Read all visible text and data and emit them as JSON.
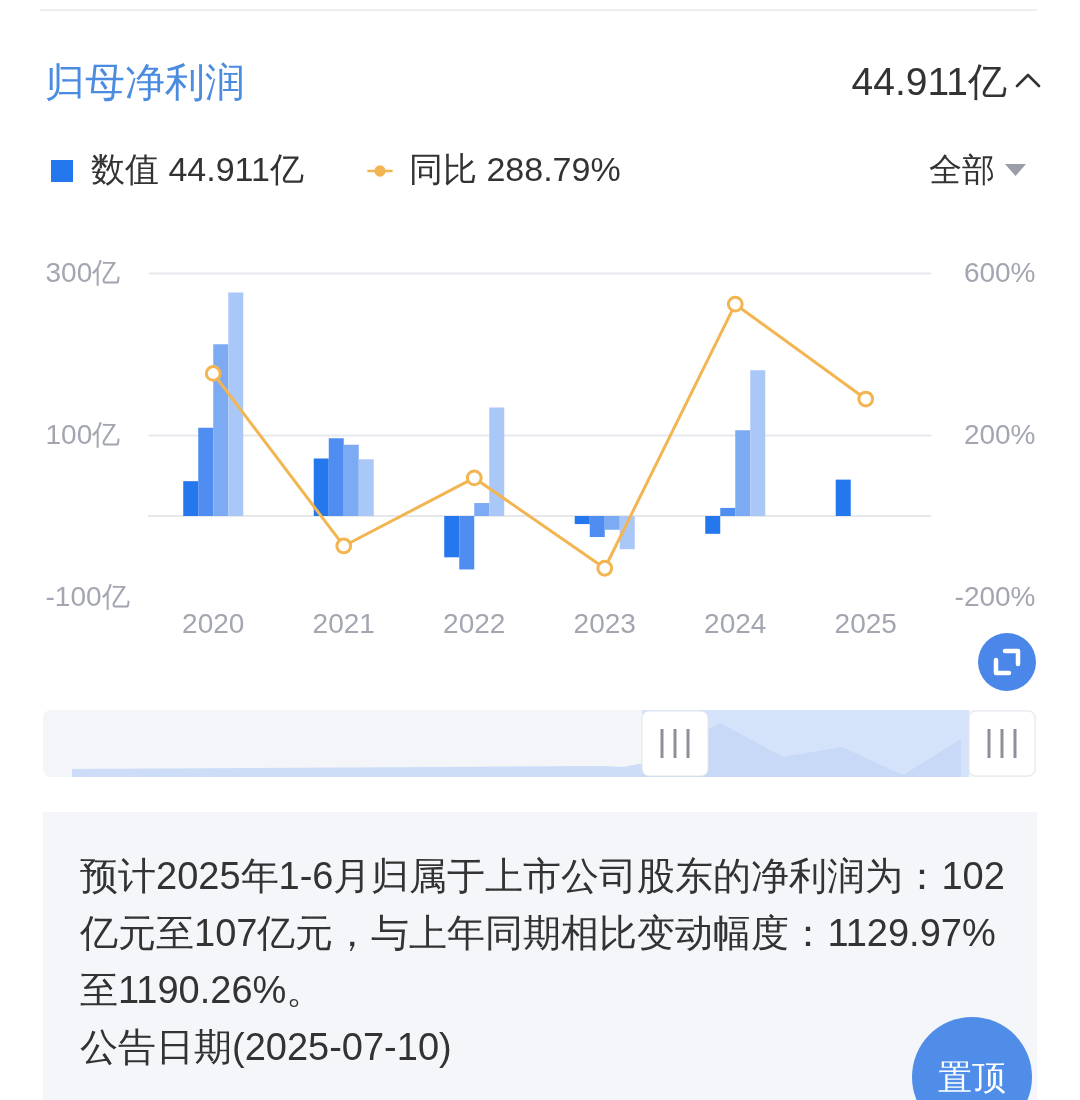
{
  "chart_data": {
    "type": "bar",
    "title": "归母净利润",
    "categories": [
      "2020",
      "2021",
      "2022",
      "2023",
      "2024",
      "2025"
    ],
    "series": [
      {
        "name": "数值 44.911亿",
        "color": "#2577ee",
        "values": [
          43,
          71,
          -51,
          -10,
          -22,
          44.911
        ]
      },
      {
        "color": "#4f8ef0",
        "values": [
          109,
          96,
          -66,
          -26,
          10,
          null
        ]
      },
      {
        "color": "#7caaf3",
        "values": [
          212,
          88,
          16,
          -17,
          106,
          null
        ]
      },
      {
        "color": "#a9c8f8",
        "values": [
          276,
          70,
          134,
          -41,
          180,
          null
        ]
      },
      {
        "name": "同比 288.79%",
        "type": "line",
        "axis": "y2",
        "color": "#f2b552",
        "values": [
          352,
          -74,
          94,
          -129,
          523,
          288.79
        ]
      }
    ],
    "ylim": [
      -100,
      300
    ],
    "yticks": [
      {
        "value": 300,
        "label": "300亿"
      },
      {
        "value": 100,
        "label": "100亿"
      },
      {
        "value": -100,
        "label": "-100亿"
      }
    ],
    "y2lim": [
      -200,
      600
    ],
    "y2ticks": [
      {
        "value": 600,
        "label": "600%"
      },
      {
        "value": 200,
        "label": "200%"
      },
      {
        "value": -200,
        "label": "-200%"
      }
    ],
    "grid": "y",
    "legend": "top left",
    "marker": "circle",
    "line_style": "solid",
    "ref_lines": [
      {
        "axis": "y",
        "value": 0,
        "color": "#e6e8ec"
      }
    ],
    "annotations": [
      "44.911亿",
      "全部",
      "预计2025年1-6月归属于上市公司股东的净利润为：102亿元至107亿元，与上年同期相比变动幅度：1129.97%至1190.26%。",
      "公告日期(2025-07-10)",
      "置顶"
    ]
  }
}
